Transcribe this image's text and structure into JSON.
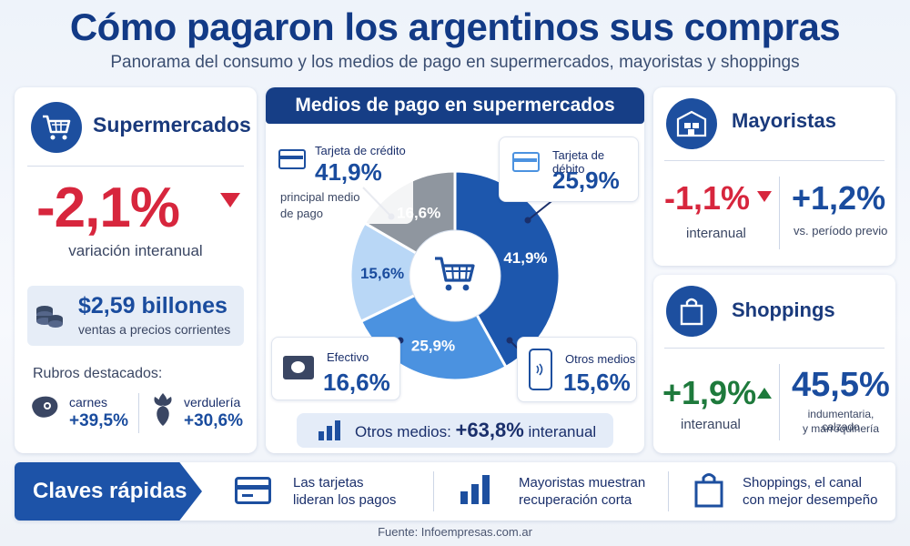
{
  "title": "Cómo pagaron los argentinos sus compras",
  "subtitle": "Panorama del consumo y los medios de pago en supermercados, mayoristas y shoppings",
  "supermercados": {
    "heading": "Supermercados",
    "variation": "-2,1%",
    "variation_label": "variación interanual",
    "sales_value": "$2,59 billones",
    "sales_label": "ventas a precios corrientes",
    "rubros_heading": "Rubros destacados:",
    "rubros": [
      {
        "name": "carnes",
        "value": "+39,5%"
      },
      {
        "name": "verdulería",
        "value": "+30,6%"
      }
    ]
  },
  "chart_data": {
    "type": "pie",
    "title": "Medios de pago en supermercados",
    "labels": [
      "Tarjeta de crédito",
      "Tarjeta de débito",
      "Otros medios",
      "Efectivo"
    ],
    "values": [
      41.9,
      25.9,
      15.6,
      16.6
    ],
    "value_labels": [
      "41,9%",
      "25,9%",
      "15,6%",
      "16,6%"
    ],
    "colors": [
      "#1d57ad",
      "#4b92e0",
      "#b9d7f6",
      "#8f969f"
    ],
    "label_colors": [
      "#ffffff",
      "#ffffff",
      "#1a4c9e",
      "#ffffff"
    ],
    "legend": [
      {
        "label": "Tarjeta de crédito",
        "value": "41,9%",
        "note": "principal medio de pago"
      },
      {
        "label": "Tarjeta de débito",
        "value": "25,9%"
      },
      {
        "label": "Efectivo",
        "value": "16,6%"
      },
      {
        "label": "Otros medios",
        "value": "15,6%"
      }
    ],
    "footnote_prefix": "Otros medios:",
    "footnote_value": "+63,8%",
    "footnote_suffix": "interanual"
  },
  "mayoristas": {
    "heading": "Mayoristas",
    "variation": "-1,1%",
    "variation_label": "interanual",
    "previous": "+1,2%",
    "previous_label": "vs. período previo"
  },
  "shoppings": {
    "heading": "Shoppings",
    "variation": "+1,9%",
    "variation_label": "interanual",
    "share": "45,5%",
    "share_label_1": "indumentaria, calzado",
    "share_label_2": "y marroquinería"
  },
  "claves": {
    "label": "Claves rápidas",
    "items": [
      {
        "line1": "Las tarjetas",
        "line2": "lideran los pagos"
      },
      {
        "line1": "Mayoristas muestran",
        "line2": "recuperación corta"
      },
      {
        "line1": "Shoppings, el canal",
        "line2": "con mejor desempeño"
      }
    ]
  },
  "source": "Fuente: Infoempresas.com.ar"
}
